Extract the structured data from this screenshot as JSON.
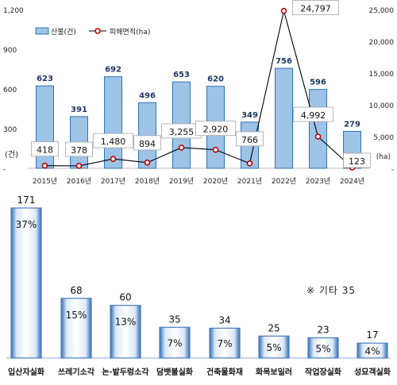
{
  "chart_data": [
    {
      "type": "bar+line",
      "categories": [
        "2015년",
        "2016년",
        "2017년",
        "2018년",
        "2019년",
        "2020년",
        "2021년",
        "2022년",
        "2023년",
        "2024년"
      ],
      "series": [
        {
          "name": "산불(건)",
          "type": "bar",
          "axis": "left",
          "values": [
            623,
            391,
            692,
            496,
            653,
            620,
            349,
            756,
            596,
            279
          ],
          "labels": [
            "623",
            "391",
            "692",
            "496",
            "653",
            "620",
            "349",
            "756",
            "596",
            "279"
          ],
          "color": "#9dc3e6"
        },
        {
          "name": "피해면적(ha)",
          "type": "line",
          "axis": "right",
          "values": [
            418,
            378,
            1480,
            894,
            3255,
            2920,
            766,
            24797,
            4992,
            123
          ],
          "labels": [
            "418",
            "378",
            "1,480",
            "894",
            "3,255",
            "2,920",
            "766",
            "24,797",
            "4,992",
            "123"
          ],
          "color": "#c00000"
        }
      ],
      "left_axis": {
        "ticks": [
          "1,200",
          "900",
          "600",
          "300",
          "-"
        ],
        "values": [
          1200,
          900,
          600,
          300,
          0
        ],
        "unit": "(건)"
      },
      "right_axis": {
        "ticks": [
          "25,000",
          "20,000",
          "15,000",
          "10,000",
          "5,000",
          "-"
        ],
        "values": [
          25000,
          20000,
          15000,
          10000,
          5000,
          0
        ],
        "unit": "(ha)"
      },
      "ylim_left": [
        0,
        1200
      ],
      "ylim_right": [
        0,
        25000
      ],
      "legend_position": "top-left",
      "grid": false
    },
    {
      "type": "bar",
      "categories": [
        "입산자실화",
        "쓰레기소각",
        "논·밭두렁소각",
        "담뱃불실화",
        "건축물화재",
        "화목보일러",
        "작업장실화",
        "성묘객실화"
      ],
      "values": [
        171,
        68,
        60,
        35,
        34,
        25,
        23,
        17
      ],
      "value_labels": [
        "171",
        "68",
        "60",
        "35",
        "34",
        "25",
        "23",
        "17"
      ],
      "percent_labels": [
        "37%",
        "15%",
        "13%",
        "7%",
        "7%",
        "5%",
        "5%",
        "4%"
      ],
      "annotation": "※ 기타 35",
      "ylim": [
        0,
        171
      ],
      "grid": false,
      "color": "#4a7cc0"
    }
  ]
}
